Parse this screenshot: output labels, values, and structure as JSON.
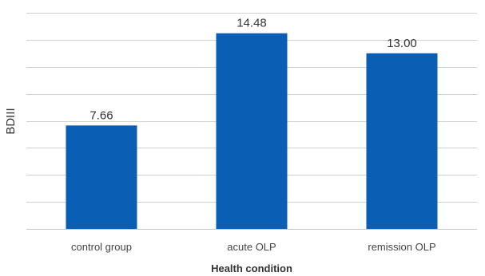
{
  "chart_data": {
    "type": "bar",
    "categories": [
      "control group",
      "acute OLP",
      "remission OLP"
    ],
    "values": [
      7.66,
      14.48,
      13.0
    ],
    "value_labels": [
      "7.66",
      "14.48",
      "13.00"
    ],
    "xlabel": "Health condition",
    "ylabel": "BDIII",
    "ylim": [
      0,
      16
    ],
    "grid": true,
    "bar_color": "#0a5fb4",
    "grid_color": "#d0d0d0"
  }
}
